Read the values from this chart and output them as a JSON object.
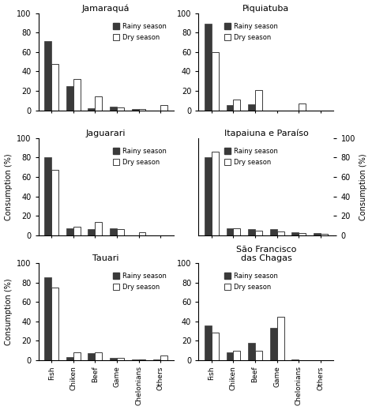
{
  "panels": [
    {
      "title": "Jamaraquá",
      "rainy": [
        71,
        25,
        2,
        4,
        1,
        0
      ],
      "dry": [
        48,
        32,
        14,
        3,
        1,
        5
      ]
    },
    {
      "title": "Piquiatuba",
      "rainy": [
        89,
        5,
        6,
        0,
        0,
        0
      ],
      "dry": [
        60,
        11,
        21,
        0,
        7,
        0
      ]
    },
    {
      "title": "Jaguarari",
      "rainy": [
        80,
        7,
        6,
        7,
        0,
        0
      ],
      "dry": [
        67,
        9,
        14,
        6,
        3,
        0
      ]
    },
    {
      "title": "Itapaiuna e Paraíso",
      "rainy": [
        80,
        7,
        6,
        6,
        3,
        2
      ],
      "dry": [
        86,
        7,
        5,
        4,
        2,
        1
      ]
    },
    {
      "title": "Tauari",
      "rainy": [
        85,
        3,
        7,
        2,
        1,
        1
      ],
      "dry": [
        75,
        8,
        8,
        2,
        1,
        5
      ]
    },
    {
      "title": "São Francisco\ndas Chagas",
      "rainy": [
        36,
        8,
        18,
        33,
        1,
        0
      ],
      "dry": [
        28,
        10,
        10,
        45,
        0,
        0
      ]
    }
  ],
  "categories": [
    "Fish",
    "Chiken",
    "Beef",
    "Game",
    "Chelonians",
    "Others"
  ],
  "rainy_color": "#3a3a3a",
  "dry_color": "#ffffff",
  "dry_edgecolor": "#3a3a3a",
  "ylim": [
    0,
    100
  ],
  "yticks": [
    0,
    20,
    40,
    60,
    80,
    100
  ],
  "ylabel": "Consumption (%)"
}
